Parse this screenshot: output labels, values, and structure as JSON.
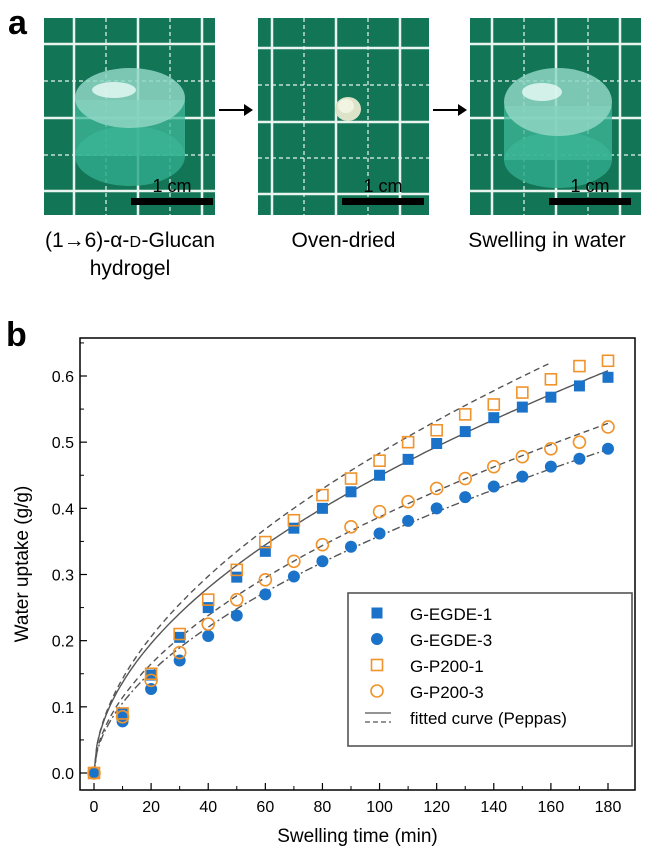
{
  "panel_a": {
    "label": "a",
    "photos": [
      {
        "scale_bar": "1 cm",
        "caption_line1_pre": "(1→6)-α-",
        "caption_line1_sc": "D",
        "caption_line1_post": "-Glucan",
        "caption_line2": "hydrogel"
      },
      {
        "scale_bar": "1 cm",
        "caption_line1": "Oven-dried"
      },
      {
        "scale_bar": "1 cm",
        "caption_line1": "Swelling in water"
      }
    ]
  },
  "panel_b": {
    "label": "b"
  },
  "chart_data": {
    "type": "scatter",
    "xlabel": "Swelling time (min)",
    "ylabel": "Water uptake (g/g)",
    "xlim": [
      -5,
      190
    ],
    "ylim": [
      -0.02,
      0.66
    ],
    "xticks": [
      0,
      20,
      40,
      60,
      80,
      100,
      120,
      140,
      160,
      180
    ],
    "yticks": [
      0.0,
      0.1,
      0.2,
      0.3,
      0.4,
      0.5,
      0.6
    ],
    "x": [
      0,
      10,
      20,
      30,
      40,
      50,
      60,
      70,
      80,
      90,
      100,
      110,
      120,
      130,
      140,
      150,
      160,
      170,
      180
    ],
    "series": [
      {
        "name": "G-EGDE-1",
        "marker": "square-filled",
        "color": "#1a73c9",
        "values": [
          0.0,
          0.09,
          0.148,
          0.205,
          0.25,
          0.296,
          0.335,
          0.37,
          0.4,
          0.425,
          0.45,
          0.474,
          0.498,
          0.516,
          0.537,
          0.553,
          0.568,
          0.585,
          0.598
        ]
      },
      {
        "name": "G-EGDE-3",
        "marker": "circle-filled",
        "color": "#1a73c9",
        "values": [
          0.0,
          0.078,
          0.127,
          0.17,
          0.207,
          0.238,
          0.27,
          0.297,
          0.32,
          0.342,
          0.362,
          0.381,
          0.4,
          0.417,
          0.433,
          0.448,
          0.463,
          0.475,
          0.49
        ]
      },
      {
        "name": "G-P200-1",
        "marker": "square-open",
        "color": "#f0932b",
        "values": [
          0.0,
          0.09,
          0.15,
          0.21,
          0.262,
          0.307,
          0.349,
          0.382,
          0.42,
          0.445,
          0.472,
          0.5,
          0.518,
          0.542,
          0.557,
          0.575,
          0.595,
          0.615,
          0.623
        ]
      },
      {
        "name": "G-P200-3",
        "marker": "circle-open",
        "color": "#f0932b",
        "values": [
          0.0,
          0.085,
          0.14,
          0.182,
          0.225,
          0.262,
          0.292,
          0.32,
          0.345,
          0.372,
          0.395,
          0.41,
          0.43,
          0.445,
          0.463,
          0.478,
          0.49,
          0.5,
          0.523
        ]
      }
    ],
    "fits": [
      {
        "style": "solid",
        "color": "#555555",
        "k": 0.0417,
        "n": 0.516,
        "x_end": 180
      },
      {
        "style": "dashdot",
        "color": "#555555",
        "k": 0.0312,
        "n": 0.53,
        "x_end": 180
      },
      {
        "style": "dashed",
        "color": "#555555",
        "k": 0.0421,
        "n": 0.53,
        "x_end": 160
      },
      {
        "style": "dashed",
        "color": "#555555",
        "k": 0.0337,
        "n": 0.53,
        "x_end": 180
      }
    ],
    "legend": {
      "placement": "lower-right",
      "entries": [
        "G-EGDE-1",
        "G-EGDE-3",
        "G-P200-1",
        "G-P200-3"
      ],
      "fit_label": "fitted curve (Peppas)"
    },
    "grid": false
  }
}
